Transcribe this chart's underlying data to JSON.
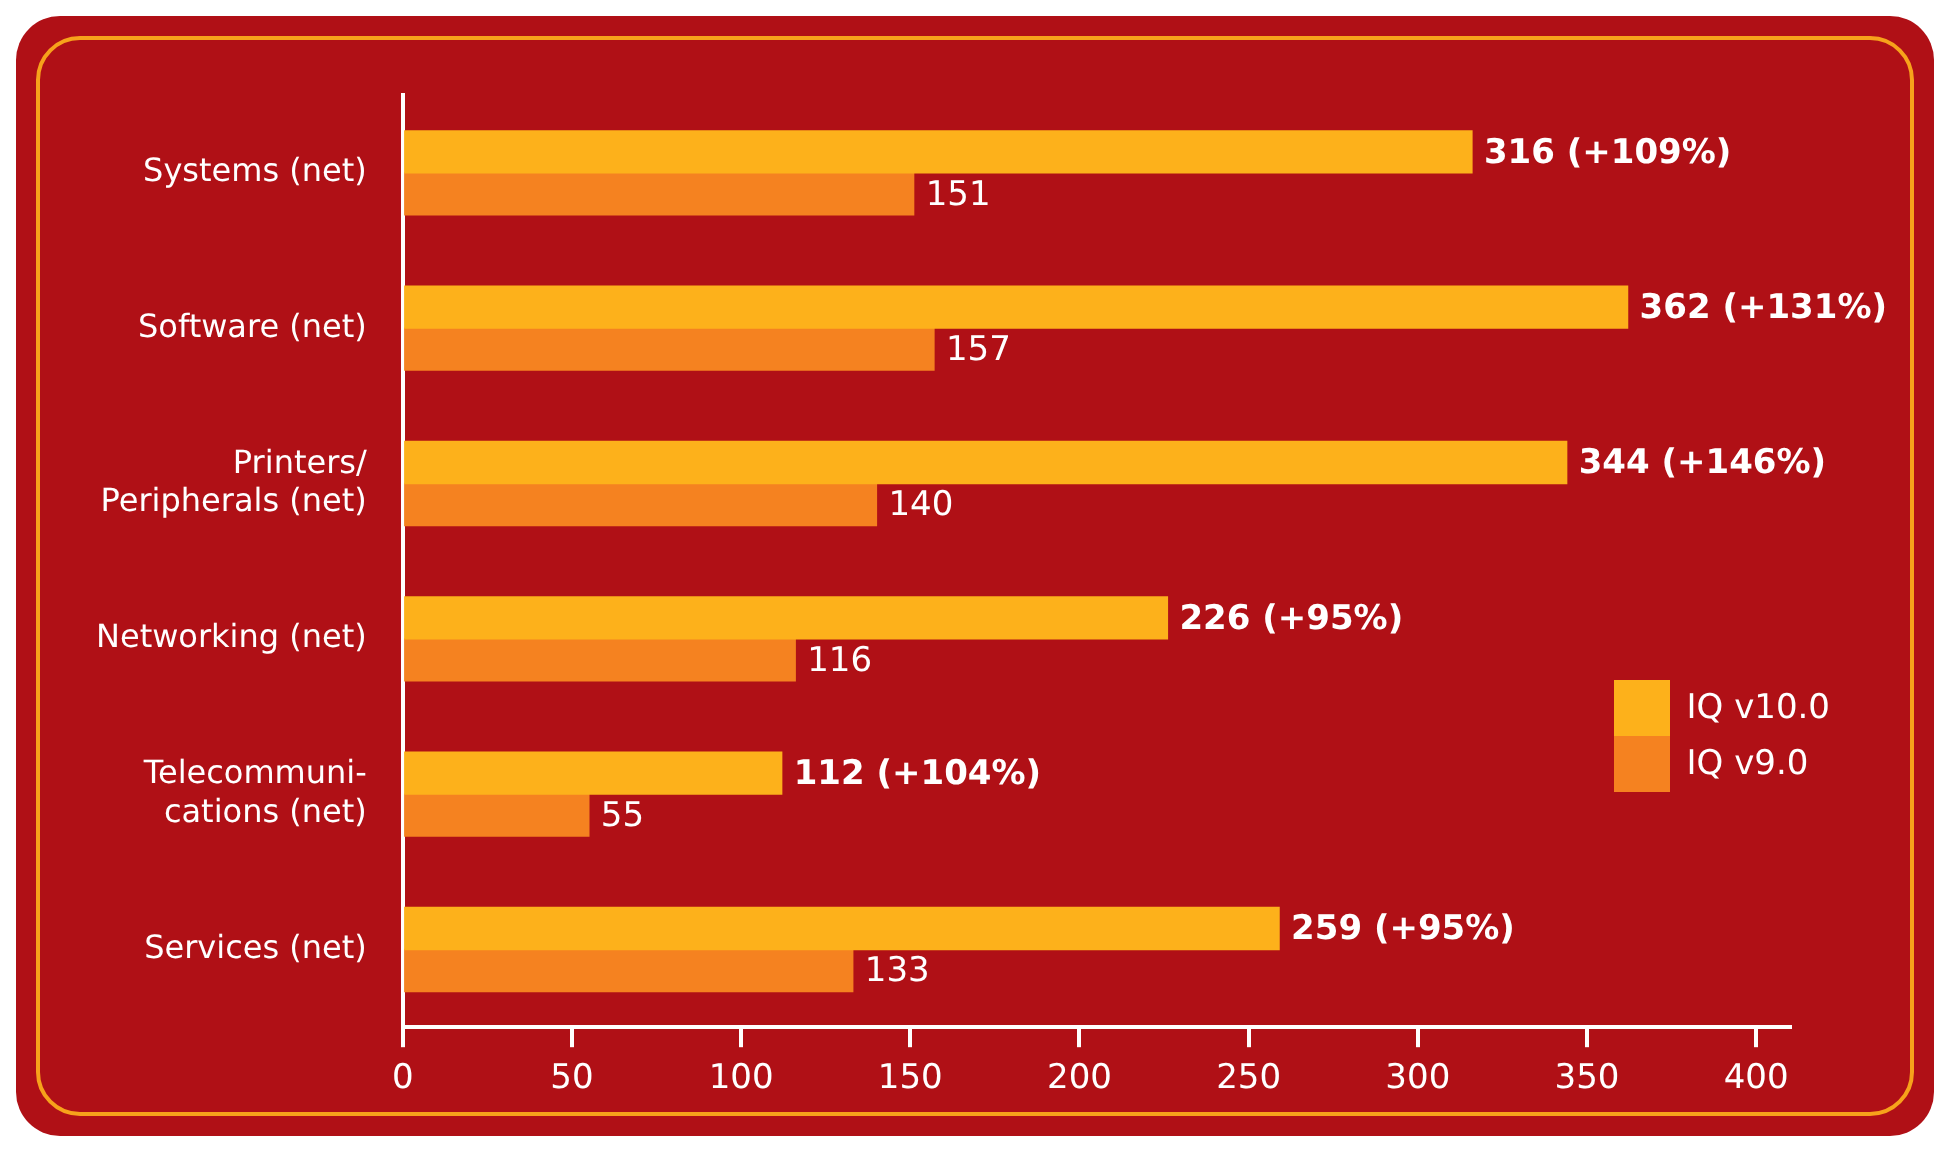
{
  "chart_data": {
    "type": "bar",
    "orientation": "horizontal",
    "categories": [
      "Systems (net)",
      "Software (net)",
      "Printers/\nPeripherals (net)",
      "Networking (net)",
      "Telecommuni-\ncations (net)",
      "Services (net)"
    ],
    "series": [
      {
        "name": "IQ v10.0",
        "color": "#fdb11b",
        "values": [
          316,
          362,
          344,
          226,
          112,
          259
        ],
        "value_labels": [
          "316 (+109%)",
          "362 (+131%)",
          "344 (+146%)",
          "226 (+95%)",
          "112 (+104%)",
          "259 (+95%)"
        ]
      },
      {
        "name": "IQ v9.0",
        "color": "#f58220",
        "values": [
          151,
          157,
          140,
          116,
          55,
          133
        ],
        "value_labels": [
          "151",
          "157",
          "140",
          "116",
          "55",
          "133"
        ]
      }
    ],
    "xlim": [
      0,
      410
    ],
    "xticks": [
      0,
      50,
      100,
      150,
      200,
      250,
      300,
      350,
      400
    ],
    "grid": false,
    "legend": "right"
  }
}
